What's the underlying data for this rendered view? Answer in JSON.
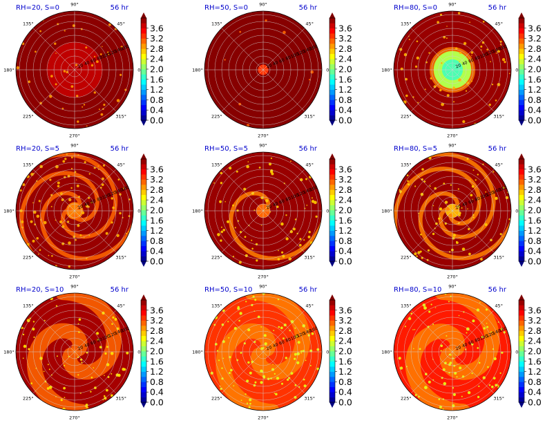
{
  "figure": {
    "colormap": "jet",
    "colors": {
      "title": "#0000cc",
      "grid": "#cfcfcf",
      "outside": "#7a0000"
    },
    "angle_labels": [
      "0°",
      "45°",
      "90°",
      "135°",
      "180°",
      "225°",
      "270°",
      "315°"
    ]
  },
  "chart_data": [
    {
      "type": "heatmap",
      "projection": "polar",
      "title": "RH=20, S=0",
      "time_label": "56 hr",
      "radial_ticks": [
        "20",
        "40",
        "60",
        "80",
        "100",
        "120",
        "140",
        "160"
      ],
      "colorbar": {
        "ticks": [
          "0.0",
          "0.4",
          "0.8",
          "1.2",
          "1.6",
          "2.0",
          "2.4",
          "2.8",
          "3.2",
          "3.6"
        ],
        "vmin": 0.0,
        "vmax": 4.0,
        "extend": "both"
      },
      "field": {
        "inner_radius": 80,
        "inner_value": 3.75,
        "outer_value": 3.95,
        "spiral_arms": 0,
        "speckle_value": 2.9,
        "speckle_density": 0.03
      }
    },
    {
      "type": "heatmap",
      "projection": "polar",
      "title": "RH=50, S=0",
      "time_label": "56 hr",
      "radial_ticks": [
        "20",
        "40",
        "60",
        "80",
        "100",
        "120",
        "140",
        "160"
      ],
      "colorbar": {
        "ticks": [
          "0.0",
          "0.4",
          "0.8",
          "1.2",
          "1.6",
          "2.0",
          "2.4",
          "2.8",
          "3.2",
          "3.6"
        ],
        "vmin": 0.0,
        "vmax": 4.0,
        "extend": "both"
      },
      "field": {
        "inner_radius": 15,
        "inner_value": 3.3,
        "outer_value": 3.97,
        "spiral_arms": 0,
        "speckle_value": 3.1,
        "speckle_density": 0.005
      }
    },
    {
      "type": "heatmap",
      "projection": "polar",
      "title": "RH=80, S=0",
      "time_label": "56 hr",
      "radial_ticks": [
        "20",
        "40",
        "60",
        "80",
        "100",
        "120",
        "140",
        "160"
      ],
      "colorbar": {
        "ticks": [
          "0.0",
          "0.4",
          "0.8",
          "1.2",
          "1.6",
          "2.0",
          "2.4",
          "2.8",
          "3.2",
          "3.6"
        ],
        "vmin": 0.0,
        "vmax": 4.0,
        "extend": "both"
      },
      "field": {
        "inner_radius": 55,
        "inner_value": 2.2,
        "outer_value": 3.9,
        "ring_radius": 60,
        "ring_value": 3.0,
        "spiral_arms": 0,
        "speckle_value": 2.8,
        "speckle_density": 0.04
      }
    },
    {
      "type": "heatmap",
      "projection": "polar",
      "title": "RH=20, S=5",
      "time_label": "56 hr",
      "radial_ticks": [
        "20",
        "40",
        "60",
        "80",
        "100",
        "120",
        "140",
        "160"
      ],
      "colorbar": {
        "ticks": [
          "0.0",
          "0.4",
          "0.8",
          "1.2",
          "1.6",
          "2.0",
          "2.4",
          "2.8",
          "3.2",
          "3.6"
        ],
        "vmin": 0.0,
        "vmax": 4.0,
        "extend": "both"
      },
      "field": {
        "inner_radius": 25,
        "inner_value": 3.0,
        "outer_value": 3.9,
        "spiral_arms": 3,
        "arm_value": 3.1,
        "speckle_value": 2.8,
        "speckle_density": 0.06
      }
    },
    {
      "type": "heatmap",
      "projection": "polar",
      "title": "RH=50, S=5",
      "time_label": "56 hr",
      "radial_ticks": [
        "20",
        "40",
        "60",
        "80",
        "100",
        "120",
        "140",
        "160"
      ],
      "colorbar": {
        "ticks": [
          "0.0",
          "0.4",
          "0.8",
          "1.2",
          "1.6",
          "2.0",
          "2.4",
          "2.8",
          "3.2",
          "3.6"
        ],
        "vmin": 0.0,
        "vmax": 4.0,
        "extend": "both"
      },
      "field": {
        "inner_radius": 20,
        "inner_value": 3.1,
        "outer_value": 3.9,
        "spiral_arms": 1,
        "arm_value": 3.0,
        "speckle_value": 2.7,
        "speckle_density": 0.05
      }
    },
    {
      "type": "heatmap",
      "projection": "polar",
      "title": "RH=80, S=5",
      "time_label": "56 hr",
      "radial_ticks": [
        "20",
        "40",
        "60",
        "80",
        "100",
        "120",
        "140",
        "160"
      ],
      "colorbar": {
        "ticks": [
          "0.0",
          "0.4",
          "0.8",
          "1.2",
          "1.6",
          "2.0",
          "2.4",
          "2.8",
          "3.2",
          "3.6"
        ],
        "vmin": 0.0,
        "vmax": 4.0,
        "extend": "both"
      },
      "field": {
        "inner_radius": 20,
        "inner_value": 2.8,
        "outer_value": 3.9,
        "spiral_arms": 3,
        "arm_value": 3.0,
        "speckle_value": 2.7,
        "speckle_density": 0.05
      }
    },
    {
      "type": "heatmap",
      "projection": "polar",
      "title": "RH=20, S=10",
      "time_label": "56 hr",
      "radial_ticks": [
        "20",
        "40",
        "60",
        "80",
        "100",
        "120",
        "140",
        "160"
      ],
      "colorbar": {
        "ticks": [
          "0.0",
          "0.4",
          "0.8",
          "1.2",
          "1.6",
          "2.0",
          "2.4",
          "2.8",
          "3.2",
          "3.6"
        ],
        "vmin": 0.0,
        "vmax": 4.0,
        "extend": "both"
      },
      "field": {
        "inner_radius": 0,
        "inner_value": 3.8,
        "outer_value": 3.85,
        "spiral_arms": 2,
        "arm_value": 3.1,
        "broad": true,
        "speckle_value": 2.6,
        "speckle_density": 0.05
      }
    },
    {
      "type": "heatmap",
      "projection": "polar",
      "title": "RH=50, S=10",
      "time_label": "56 hr",
      "radial_ticks": [
        "20",
        "40",
        "60",
        "80",
        "100",
        "120",
        "140",
        "160"
      ],
      "colorbar": {
        "ticks": [
          "0.0",
          "0.4",
          "0.8",
          "1.2",
          "1.6",
          "2.0",
          "2.4",
          "2.8",
          "3.2",
          "3.6"
        ],
        "vmin": 0.0,
        "vmax": 4.0,
        "extend": "both"
      },
      "field": {
        "inner_radius": 0,
        "inner_value": 3.9,
        "outer_value": 3.3,
        "spiral_arms": 2,
        "arm_value": 3.0,
        "broad": true,
        "speckle_value": 2.4,
        "speckle_density": 0.07
      }
    },
    {
      "type": "heatmap",
      "projection": "polar",
      "title": "RH=80, S=10",
      "time_label": "56 hr",
      "radial_ticks": [
        "20",
        "40",
        "60",
        "80",
        "100",
        "120",
        "140",
        "160"
      ],
      "colorbar": {
        "ticks": [
          "0.0",
          "0.4",
          "0.8",
          "1.2",
          "1.6",
          "2.0",
          "2.4",
          "2.8",
          "3.2",
          "3.6"
        ],
        "vmin": 0.0,
        "vmax": 4.0,
        "extend": "both"
      },
      "field": {
        "inner_radius": 0,
        "inner_value": 3.8,
        "outer_value": 3.4,
        "spiral_arms": 2,
        "arm_value": 3.0,
        "broad": true,
        "speckle_value": 2.4,
        "speckle_density": 0.06
      }
    }
  ]
}
